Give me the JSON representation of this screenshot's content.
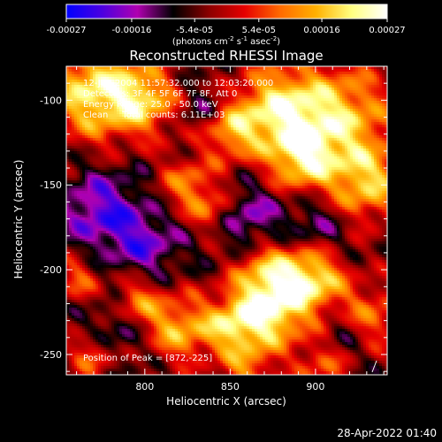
{
  "colorbar": {
    "tick_labels": [
      "-0.00027",
      "-0.00016",
      "-5.4e-05",
      "5.4e-05",
      "0.00016",
      "0.00027"
    ],
    "tick_values": [
      -0.00027,
      -0.00016,
      -5.4e-05,
      5.4e-05,
      0.00016,
      0.00027
    ],
    "range": [
      -0.00027,
      0.00027
    ],
    "unit_label": "(photons cm",
    "unit_exp1": "-2",
    "unit_mid": " s",
    "unit_exp2": "-1",
    "unit_mid2": " asec",
    "unit_exp3": "-2",
    "unit_end": ")",
    "stops": [
      "#0000ff",
      "#4b00e0",
      "#b000b0",
      "#000000",
      "#8b0000",
      "#e60000",
      "#ff6a00",
      "#ffb000",
      "#ffff80",
      "#ffffff"
    ]
  },
  "chart_data": {
    "type": "heatmap",
    "title": "Reconstructed RHESSI Image",
    "xlabel": "Heliocentric X (arcsec)",
    "ylabel": "Heliocentric Y (arcsec)",
    "xlim": [
      754,
      942
    ],
    "ylim": [
      -262,
      -80
    ],
    "x_ticks": [
      800,
      850,
      900
    ],
    "y_ticks": [
      -100,
      -150,
      -200,
      -250
    ],
    "info_lines": [
      "12-Jan-2004 11:57:32.000 to 12:03:20.000",
      "Detectors: 3F 4F 5F 6F 7F 8F, Att 0",
      "Energy Range: 25.0 - 50.0 keV",
      "Clean     Total counts: 6.11E+03"
    ],
    "peak_label": "Position of Peak = [872,-225]",
    "peak": [
      872,
      -225
    ],
    "blobs": [
      {
        "x": 770,
        "y": -95,
        "v": 0.95,
        "r": 20
      },
      {
        "x": 800,
        "y": -100,
        "v": 0.7,
        "r": 14
      },
      {
        "x": 878,
        "y": -105,
        "v": 0.85,
        "r": 18
      },
      {
        "x": 915,
        "y": -110,
        "v": 0.8,
        "r": 22
      },
      {
        "x": 850,
        "y": -118,
        "v": 0.65,
        "r": 12
      },
      {
        "x": 892,
        "y": -135,
        "v": 0.75,
        "r": 14
      },
      {
        "x": 930,
        "y": -150,
        "v": 0.75,
        "r": 16
      },
      {
        "x": 825,
        "y": -150,
        "v": 0.55,
        "r": 12
      },
      {
        "x": 840,
        "y": -165,
        "v": 0.45,
        "r": 10
      },
      {
        "x": 872,
        "y": -200,
        "v": 0.55,
        "r": 14
      },
      {
        "x": 898,
        "y": -205,
        "v": 0.9,
        "r": 14
      },
      {
        "x": 872,
        "y": -225,
        "v": 1.0,
        "r": 16
      },
      {
        "x": 850,
        "y": -235,
        "v": 0.6,
        "r": 12
      },
      {
        "x": 820,
        "y": -235,
        "v": 0.7,
        "r": 14
      },
      {
        "x": 795,
        "y": -220,
        "v": 0.6,
        "r": 11
      },
      {
        "x": 932,
        "y": -228,
        "v": 0.55,
        "r": 14
      },
      {
        "x": 905,
        "y": -255,
        "v": 0.5,
        "r": 12
      },
      {
        "x": 760,
        "y": -205,
        "v": 0.45,
        "r": 10
      },
      {
        "x": 770,
        "y": -250,
        "v": 0.5,
        "r": 10
      },
      {
        "x": 860,
        "y": -260,
        "v": 0.5,
        "r": 10
      },
      {
        "x": 775,
        "y": -165,
        "v": -0.55,
        "r": 16
      },
      {
        "x": 800,
        "y": -185,
        "v": -0.45,
        "r": 14
      },
      {
        "x": 860,
        "y": -170,
        "v": -0.45,
        "r": 14
      },
      {
        "x": 900,
        "y": -175,
        "v": -0.35,
        "r": 14
      },
      {
        "x": 915,
        "y": -240,
        "v": -0.35,
        "r": 12
      },
      {
        "x": 785,
        "y": -235,
        "v": -0.4,
        "r": 12
      },
      {
        "x": 835,
        "y": -105,
        "v": -0.3,
        "r": 10
      }
    ]
  },
  "timestamp": "28-Apr-2022 01:40"
}
